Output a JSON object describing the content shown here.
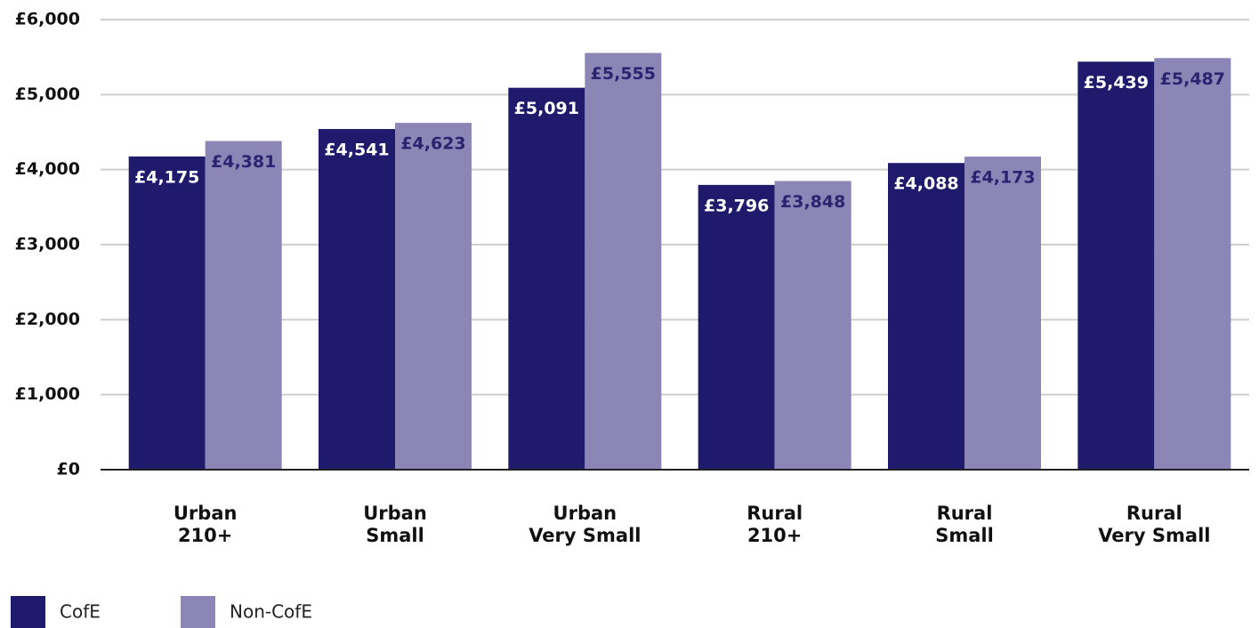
{
  "chart_data": {
    "type": "bar",
    "categories": [
      [
        "Urban",
        "210+"
      ],
      [
        "Urban",
        "Small"
      ],
      [
        "Urban",
        "Very Small"
      ],
      [
        "Rural",
        "210+"
      ],
      [
        "Rural",
        "Small"
      ],
      [
        "Rural",
        "Very Small"
      ]
    ],
    "series": [
      {
        "name": "CofE",
        "color": "#1f1a6b",
        "values": [
          4175,
          4541,
          5091,
          3796,
          4088,
          5439
        ],
        "value_labels": [
          "£4,175",
          "£4,541",
          "£5,091",
          "£3,796",
          "£4,088",
          "£5,439"
        ]
      },
      {
        "name": "Non-CofE",
        "color": "#8b86b6",
        "values": [
          4381,
          4623,
          5555,
          3848,
          4173,
          5487
        ],
        "value_labels": [
          "£4,381",
          "£4,623",
          "£5,555",
          "£3,848",
          "£4,173",
          "£5,487"
        ]
      }
    ],
    "ylim": [
      0,
      6000
    ],
    "yticks": [
      {
        "value": 0,
        "label": "£0"
      },
      {
        "value": 1000,
        "label": "£1,000"
      },
      {
        "value": 2000,
        "label": "£2,000"
      },
      {
        "value": 3000,
        "label": "£3,000"
      },
      {
        "value": 4000,
        "label": "£4,000"
      },
      {
        "value": 5000,
        "label": "£5,000"
      },
      {
        "value": 6000,
        "label": "£6,000"
      }
    ],
    "grid": true
  }
}
